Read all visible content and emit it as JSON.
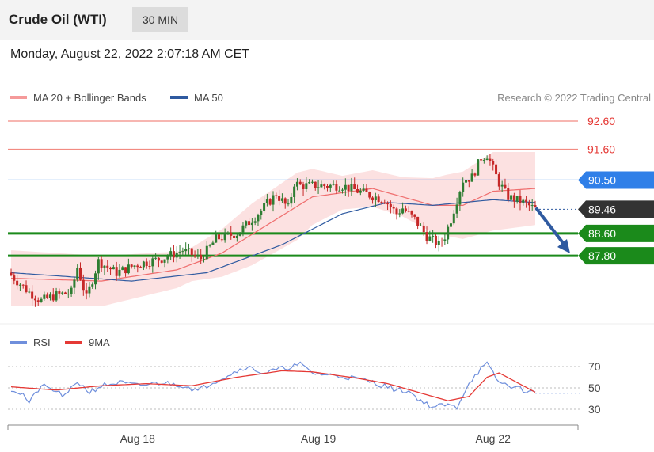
{
  "header": {
    "instrument": "Crude Oil (WTI)",
    "timeframe": "30 MIN",
    "datetime": "Monday, August 22, 2022 2:07:18 AM CET"
  },
  "legend": {
    "ma20_label": "MA 20 + Bollinger Bands",
    "ma50_label": "MA 50",
    "credit": "Research © 2022 Trading Central",
    "rsi_label": "RSI",
    "rsi_ma_label": "9MA"
  },
  "colors": {
    "bullish_candle": "#2e7d32",
    "bearish_candle": "#c62828",
    "ma20": "#ef6e6e",
    "ma50": "#2f5aa0",
    "bands_fill": "#fcdcdc",
    "resistance": "#f28b82",
    "pivot": "#2f7fe8",
    "support": "#1b8a1b",
    "price": "#333333",
    "rsi": "#6f8fdc",
    "rsi_ma": "#e53935",
    "arrow": "#2f5aa0"
  },
  "chart_data": [
    {
      "type": "candlestick",
      "x_tick_labels": [
        "Aug 18",
        "Aug 19",
        "Aug 22"
      ],
      "levels": [
        {
          "label": "92.60",
          "value": 92.6,
          "kind": "resistance"
        },
        {
          "label": "91.60",
          "value": 91.6,
          "kind": "resistance"
        },
        {
          "label": "90.50",
          "value": 90.5,
          "kind": "pivot"
        },
        {
          "label": "89.46",
          "value": 89.46,
          "kind": "last-price"
        },
        {
          "label": "88.60",
          "value": 88.6,
          "kind": "support"
        },
        {
          "label": "87.80",
          "value": 87.8,
          "kind": "support"
        }
      ],
      "close_anchors": [
        [
          0,
          87.1
        ],
        [
          6,
          86.5
        ],
        [
          10,
          86.2
        ],
        [
          15,
          86.4
        ],
        [
          20,
          86.5
        ],
        [
          22,
          87.4
        ],
        [
          25,
          86.3
        ],
        [
          29,
          87.6
        ],
        [
          35,
          87.2
        ],
        [
          42,
          87.5
        ],
        [
          50,
          87.7
        ],
        [
          57,
          88.0
        ],
        [
          63,
          87.7
        ],
        [
          68,
          88.4
        ],
        [
          75,
          88.6
        ],
        [
          82,
          89.3
        ],
        [
          88,
          90.0
        ],
        [
          92,
          89.5
        ],
        [
          94,
          90.4
        ],
        [
          96,
          90.3
        ],
        [
          104,
          90.3
        ],
        [
          110,
          90.3
        ],
        [
          118,
          90.0
        ],
        [
          124,
          89.8
        ],
        [
          128,
          89.3
        ],
        [
          130,
          89.5
        ],
        [
          134,
          89.1
        ],
        [
          138,
          88.5
        ],
        [
          142,
          88.2
        ],
        [
          144,
          88.5
        ],
        [
          146,
          89.1
        ],
        [
          148,
          89.8
        ],
        [
          150,
          90.5
        ],
        [
          153,
          90.6
        ],
        [
          156,
          91.3
        ],
        [
          158,
          91.4
        ],
        [
          160,
          90.9
        ],
        [
          162,
          90.4
        ],
        [
          165,
          89.9
        ],
        [
          170,
          89.7
        ],
        [
          174,
          89.46
        ]
      ],
      "ma20_anchors": [
        [
          0,
          87.0
        ],
        [
          30,
          86.9
        ],
        [
          55,
          87.3
        ],
        [
          70,
          87.9
        ],
        [
          85,
          88.9
        ],
        [
          100,
          89.9
        ],
        [
          120,
          90.2
        ],
        [
          140,
          89.6
        ],
        [
          150,
          89.6
        ],
        [
          160,
          90.1
        ],
        [
          174,
          90.2
        ]
      ],
      "ma50_anchors": [
        [
          0,
          87.2
        ],
        [
          40,
          86.9
        ],
        [
          65,
          87.2
        ],
        [
          90,
          88.2
        ],
        [
          110,
          89.3
        ],
        [
          125,
          89.7
        ],
        [
          140,
          89.6
        ],
        [
          160,
          89.8
        ],
        [
          174,
          89.7
        ]
      ],
      "band_width_anchors": [
        [
          0,
          1.0
        ],
        [
          30,
          0.9
        ],
        [
          60,
          0.6
        ],
        [
          80,
          1.1
        ],
        [
          95,
          1.2
        ],
        [
          110,
          0.6
        ],
        [
          130,
          0.7
        ],
        [
          145,
          1.1
        ],
        [
          160,
          1.4
        ],
        [
          174,
          1.3
        ]
      ],
      "forecast": {
        "direction": "down",
        "target": 87.8
      }
    },
    {
      "type": "line",
      "title": "RSI",
      "yticks": [
        30,
        50,
        70
      ],
      "series": [
        {
          "name": "RSI",
          "anchors": [
            [
              0,
              49
            ],
            [
              4,
              44
            ],
            [
              6,
              36
            ],
            [
              10,
              52
            ],
            [
              14,
              48
            ],
            [
              18,
              42
            ],
            [
              22,
              56
            ],
            [
              26,
              46
            ],
            [
              30,
              52
            ],
            [
              36,
              55
            ],
            [
              42,
              52
            ],
            [
              50,
              55
            ],
            [
              58,
              52
            ],
            [
              62,
              47
            ],
            [
              66,
              54
            ],
            [
              72,
              62
            ],
            [
              78,
              70
            ],
            [
              84,
              64
            ],
            [
              90,
              68
            ],
            [
              96,
              72
            ],
            [
              100,
              64
            ],
            [
              106,
              62
            ],
            [
              112,
              60
            ],
            [
              118,
              57
            ],
            [
              124,
              52
            ],
            [
              128,
              48
            ],
            [
              132,
              47
            ],
            [
              136,
              38
            ],
            [
              140,
              32
            ],
            [
              144,
              34
            ],
            [
              148,
              32
            ],
            [
              152,
              55
            ],
            [
              156,
              68
            ],
            [
              158,
              72
            ],
            [
              162,
              55
            ],
            [
              168,
              50
            ],
            [
              174,
              45
            ]
          ]
        },
        {
          "name": "9MA",
          "anchors": [
            [
              0,
              51
            ],
            [
              15,
              48
            ],
            [
              30,
              52
            ],
            [
              45,
              54
            ],
            [
              60,
              52
            ],
            [
              75,
              60
            ],
            [
              90,
              66
            ],
            [
              100,
              65
            ],
            [
              115,
              59
            ],
            [
              125,
              54
            ],
            [
              135,
              46
            ],
            [
              145,
              38
            ],
            [
              152,
              42
            ],
            [
              158,
              60
            ],
            [
              162,
              64
            ],
            [
              168,
              55
            ],
            [
              174,
              46
            ]
          ]
        }
      ]
    }
  ]
}
